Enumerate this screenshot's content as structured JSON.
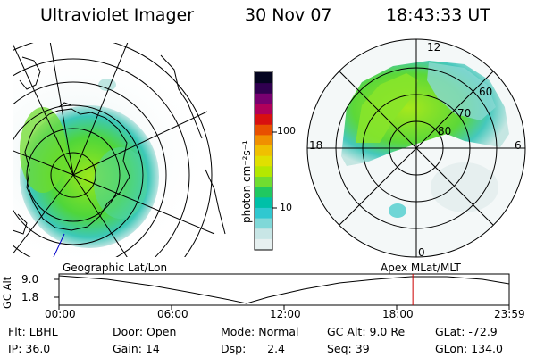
{
  "header": {
    "title": "Ultraviolet Imager",
    "date": "30 Nov 07",
    "time": "18:43:33 UT"
  },
  "left_panel": {
    "label": "Geographic Lat/Lon"
  },
  "right_panel": {
    "label": "Apex MLat/MLT",
    "mlt_labels": {
      "top": "12",
      "left": "18",
      "right": "6",
      "bottom": "0"
    },
    "lat_labels": [
      "60",
      "70",
      "80"
    ]
  },
  "colorbar": {
    "unit": "photon cm⁻²s⁻¹",
    "ticks": [
      "100",
      "10"
    ],
    "colors": [
      "#e6f0f0",
      "#c8e6e6",
      "#7fd8d8",
      "#30c8d0",
      "#00c0a8",
      "#20c860",
      "#70dd30",
      "#b4e800",
      "#e0e000",
      "#f0c000",
      "#f09000",
      "#e85000",
      "#d81010",
      "#b0005a",
      "#780070",
      "#300050",
      "#050520"
    ]
  },
  "timeline": {
    "ylabel": "GC Alt",
    "yticks": [
      "9.0",
      "1.8"
    ],
    "xticks": [
      "00:00",
      "06:00",
      "12:00",
      "18:00",
      "23:59"
    ],
    "marker_fraction": 0.786,
    "marker_color": "#cc0000"
  },
  "info": {
    "flt": "Flt: LBHL",
    "ip": "IP: 36.0",
    "door": "Door: Open",
    "gain": "Gain: 14",
    "mode": "Mode: Normal",
    "dsp": "Dsp:      2.4",
    "gcalt": "GC Alt: 9.0 Re",
    "seq": "Seq: 39",
    "glat": "GLat: -72.9",
    "glon": "GLon: 134.0"
  }
}
